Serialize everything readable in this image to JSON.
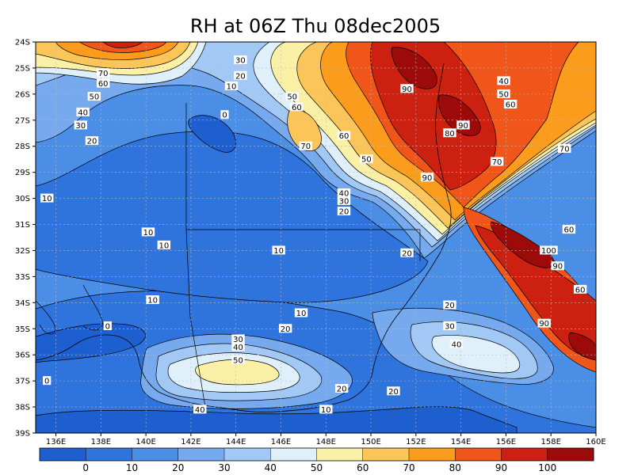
{
  "chart_data": {
    "type": "heatmap",
    "title": "RH at 06Z Thu 08dec2005",
    "xlabel": "",
    "ylabel": "",
    "x_range": [
      135.1,
      160
    ],
    "y_range": [
      -39,
      -24
    ],
    "x_ticks": [
      "136E",
      "138E",
      "140E",
      "142E",
      "144E",
      "146E",
      "148E",
      "150E",
      "152E",
      "154E",
      "156E",
      "158E",
      "160E"
    ],
    "x_tick_values": [
      136,
      138,
      140,
      142,
      144,
      146,
      148,
      150,
      152,
      154,
      156,
      158,
      160
    ],
    "y_ticks": [
      "24S",
      "25S",
      "26S",
      "27S",
      "28S",
      "29S",
      "30S",
      "31S",
      "32S",
      "33S",
      "34S",
      "35S",
      "36S",
      "37S",
      "38S",
      "39S"
    ],
    "y_tick_values": [
      -24,
      -25,
      -26,
      -27,
      -28,
      -29,
      -30,
      -31,
      -32,
      -33,
      -34,
      -35,
      -36,
      -37,
      -38,
      -39
    ],
    "grid": true,
    "levels": [
      0,
      10,
      20,
      30,
      40,
      50,
      60,
      70,
      80,
      90,
      100
    ],
    "colorbar_labels": [
      "0",
      "10",
      "20",
      "30",
      "40",
      "50",
      "60",
      "70",
      "80",
      "90",
      "100"
    ],
    "colors": [
      "#1e5fd0",
      "#2f74dd",
      "#4a8ee6",
      "#76a9ee",
      "#a2c8f5",
      "#dff0fb",
      "#fbf1a6",
      "#fbc55a",
      "#fb9c1c",
      "#f0551a",
      "#cc2010",
      "#9c0a0a"
    ],
    "contour_labels": [
      {
        "text": "30",
        "lon": 144.2,
        "lat": -24.7
      },
      {
        "text": "20",
        "lon": 144.2,
        "lat": -25.3
      },
      {
        "text": "10",
        "lon": 143.8,
        "lat": -25.7
      },
      {
        "text": "70",
        "lon": 138.1,
        "lat": -25.2
      },
      {
        "text": "60",
        "lon": 138.1,
        "lat": -25.6
      },
      {
        "text": "50",
        "lon": 137.7,
        "lat": -26.1
      },
      {
        "text": "40",
        "lon": 137.2,
        "lat": -26.7
      },
      {
        "text": "30",
        "lon": 137.1,
        "lat": -27.2
      },
      {
        "text": "20",
        "lon": 137.6,
        "lat": -27.8
      },
      {
        "text": "0",
        "lon": 143.5,
        "lat": -26.8
      },
      {
        "text": "10",
        "lon": 135.6,
        "lat": -30.0
      },
      {
        "text": "50",
        "lon": 146.5,
        "lat": -26.1
      },
      {
        "text": "60",
        "lon": 146.7,
        "lat": -26.5
      },
      {
        "text": "70",
        "lon": 147.1,
        "lat": -28.0
      },
      {
        "text": "60",
        "lon": 148.8,
        "lat": -27.6
      },
      {
        "text": "50",
        "lon": 149.8,
        "lat": -28.5
      },
      {
        "text": "40",
        "lon": 148.8,
        "lat": -29.8
      },
      {
        "text": "30",
        "lon": 148.8,
        "lat": -30.1
      },
      {
        "text": "20",
        "lon": 148.8,
        "lat": -30.5
      },
      {
        "text": "90",
        "lon": 151.6,
        "lat": -25.8
      },
      {
        "text": "90",
        "lon": 154.1,
        "lat": -27.2
      },
      {
        "text": "80",
        "lon": 153.5,
        "lat": -27.5
      },
      {
        "text": "90",
        "lon": 152.5,
        "lat": -29.2
      },
      {
        "text": "40",
        "lon": 155.9,
        "lat": -25.5
      },
      {
        "text": "50",
        "lon": 155.9,
        "lat": -26.0
      },
      {
        "text": "60",
        "lon": 156.2,
        "lat": -26.4
      },
      {
        "text": "70",
        "lon": 155.6,
        "lat": -28.6
      },
      {
        "text": "70",
        "lon": 158.6,
        "lat": -28.1
      },
      {
        "text": "60",
        "lon": 158.8,
        "lat": -31.2
      },
      {
        "text": "100",
        "lon": 157.9,
        "lat": -32.0
      },
      {
        "text": "90",
        "lon": 158.3,
        "lat": -32.6
      },
      {
        "text": "60",
        "lon": 159.3,
        "lat": -33.5
      },
      {
        "text": "90",
        "lon": 157.7,
        "lat": -34.8
      },
      {
        "text": "10",
        "lon": 140.1,
        "lat": -31.3
      },
      {
        "text": "10",
        "lon": 140.8,
        "lat": -31.8
      },
      {
        "text": "10",
        "lon": 145.9,
        "lat": -32.0
      },
      {
        "text": "20",
        "lon": 151.6,
        "lat": -32.1
      },
      {
        "text": "10",
        "lon": 140.3,
        "lat": -33.9
      },
      {
        "text": "10",
        "lon": 146.9,
        "lat": -34.4
      },
      {
        "text": "20",
        "lon": 146.2,
        "lat": -35.0
      },
      {
        "text": "20",
        "lon": 153.5,
        "lat": -34.1
      },
      {
        "text": "30",
        "lon": 153.5,
        "lat": -34.9
      },
      {
        "text": "40",
        "lon": 153.8,
        "lat": -35.6
      },
      {
        "text": "0",
        "lon": 138.3,
        "lat": -34.9
      },
      {
        "text": "0",
        "lon": 135.6,
        "lat": -37.0
      },
      {
        "text": "30",
        "lon": 144.1,
        "lat": -35.4
      },
      {
        "text": "40",
        "lon": 144.1,
        "lat": -35.7
      },
      {
        "text": "50",
        "lon": 144.1,
        "lat": -36.2
      },
      {
        "text": "20",
        "lon": 148.7,
        "lat": -37.3
      },
      {
        "text": "20",
        "lon": 151.0,
        "lat": -37.4
      },
      {
        "text": "40",
        "lon": 142.4,
        "lat": -38.1
      },
      {
        "text": "10",
        "lon": 148.0,
        "lat": -38.1
      }
    ]
  }
}
